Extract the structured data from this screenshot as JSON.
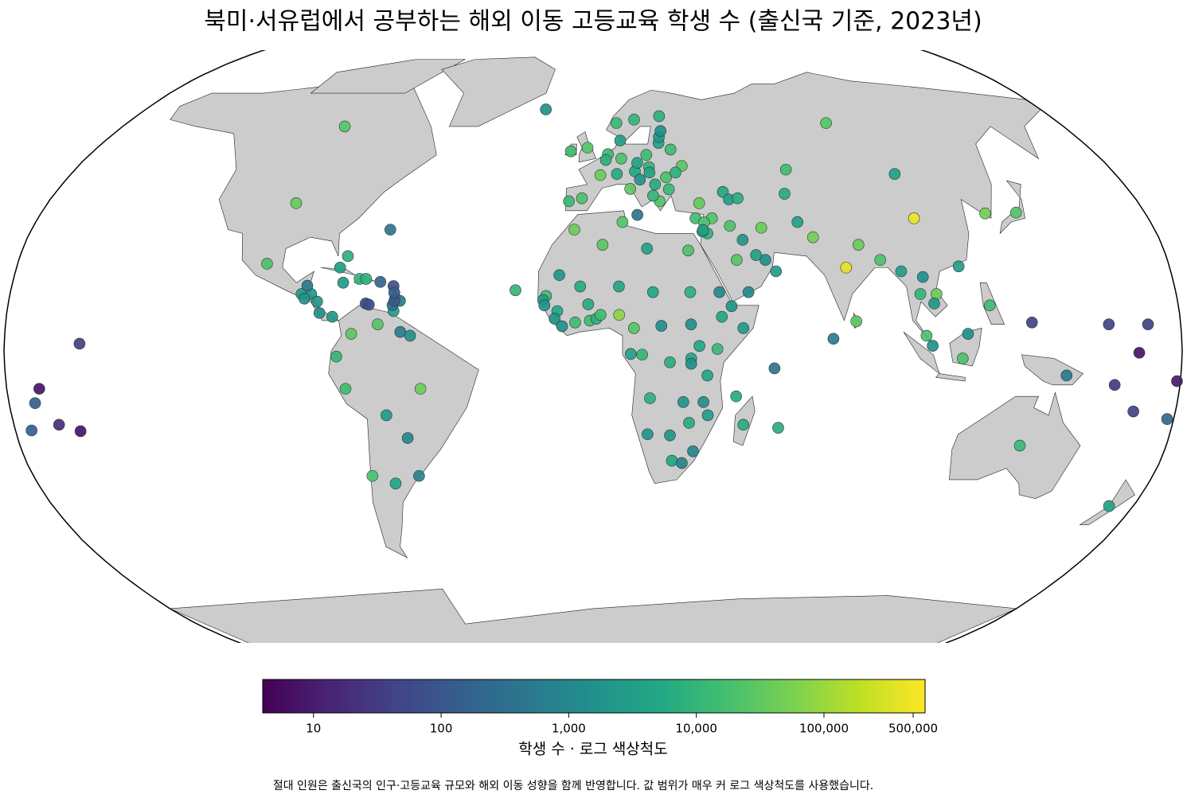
{
  "chart_data": {
    "type": "map",
    "title": "북미·서유럽에서 공부하는 해외 이동 고등교육 학생 수 (출신국 기준, 2023년)",
    "colorbar_label": "학생 수 · 로그 색상척도",
    "note": "절대 인원은 출신국의 인구·고등교육 규모와 해외 이동 성향을 함께 반영합니다. 값 범위가 매우 커 로그 색상척도를 사용했습니다.",
    "log_scale": true,
    "colormap": "viridis",
    "clim": [
      4,
      620000
    ],
    "cbar_ticks": [
      10,
      100,
      {
        "value": 1000,
        "label": "1,000"
      },
      {
        "value": 10000,
        "label": "10,000"
      },
      {
        "value": 100000,
        "label": "100,000"
      },
      {
        "value": 500000,
        "label": "500,000"
      }
    ],
    "points": [
      {
        "lon": -98,
        "lat": 39,
        "value": 35000
      },
      {
        "lon": -95,
        "lat": 60,
        "value": 25000
      },
      {
        "lon": -102,
        "lat": 23,
        "value": 20000
      },
      {
        "lon": -90,
        "lat": 15,
        "value": 3000
      },
      {
        "lon": -87,
        "lat": 15,
        "value": 2500
      },
      {
        "lon": -89,
        "lat": 13.8,
        "value": 1500
      },
      {
        "lon": -85,
        "lat": 13,
        "value": 2000
      },
      {
        "lon": -84,
        "lat": 10,
        "value": 1500
      },
      {
        "lon": -80,
        "lat": 9,
        "value": 2500
      },
      {
        "lon": -77,
        "lat": 25,
        "value": 8000
      },
      {
        "lon": -65,
        "lat": 32,
        "value": 400
      },
      {
        "lon": -79,
        "lat": 22,
        "value": 3000
      },
      {
        "lon": -72.5,
        "lat": 19,
        "value": 10000
      },
      {
        "lon": -70.5,
        "lat": 19,
        "value": 8000
      },
      {
        "lon": -77.5,
        "lat": 18,
        "value": 2500
      },
      {
        "lon": -66,
        "lat": 18.2,
        "value": 200
      },
      {
        "lon": -61.8,
        "lat": 17.1,
        "value": 80
      },
      {
        "lon": -61,
        "lat": 13.9,
        "value": 150
      },
      {
        "lon": -59.5,
        "lat": 13.2,
        "value": 600
      },
      {
        "lon": -61.3,
        "lat": 10.5,
        "value": 3000
      },
      {
        "lon": -61.7,
        "lat": 12.1,
        "value": 300
      },
      {
        "lon": -61.2,
        "lat": 13.2,
        "value": 100
      },
      {
        "lon": -61.4,
        "lat": 15.4,
        "value": 150
      },
      {
        "lon": -70,
        "lat": 12.5,
        "value": 60
      },
      {
        "lon": -69,
        "lat": 12.2,
        "value": 70
      },
      {
        "lon": -88.5,
        "lat": 17.2,
        "value": 500
      },
      {
        "lon": -74,
        "lat": 4.5,
        "value": 30000
      },
      {
        "lon": -66,
        "lat": 7,
        "value": 25000
      },
      {
        "lon": -78.5,
        "lat": -1.5,
        "value": 10000
      },
      {
        "lon": -76,
        "lat": -10,
        "value": 15000
      },
      {
        "lon": -53,
        "lat": -10,
        "value": 40000
      },
      {
        "lon": -64,
        "lat": -17,
        "value": 2500
      },
      {
        "lon": -58,
        "lat": -23,
        "value": 1000
      },
      {
        "lon": -71,
        "lat": -33,
        "value": 20000
      },
      {
        "lon": -64,
        "lat": -35,
        "value": 5000
      },
      {
        "lon": -56,
        "lat": -33,
        "value": 800
      },
      {
        "lon": -59,
        "lat": 5,
        "value": 600
      },
      {
        "lon": -56,
        "lat": 4,
        "value": 1500
      },
      {
        "lon": -19,
        "lat": 65,
        "value": 1500
      },
      {
        "lon": -2,
        "lat": 54,
        "value": 25000
      },
      {
        "lon": -8,
        "lat": 53,
        "value": 15000
      },
      {
        "lon": 9,
        "lat": 61,
        "value": 12000
      },
      {
        "lon": 16,
        "lat": 62,
        "value": 10000
      },
      {
        "lon": 26,
        "lat": 63,
        "value": 8000
      },
      {
        "lon": 10,
        "lat": 56,
        "value": 4000
      },
      {
        "lon": 5.3,
        "lat": 52.2,
        "value": 12000
      },
      {
        "lon": 4.5,
        "lat": 50.6,
        "value": 8000
      },
      {
        "lon": 10,
        "lat": 51,
        "value": 20000
      },
      {
        "lon": 2.5,
        "lat": 46.5,
        "value": 40000
      },
      {
        "lon": -3.7,
        "lat": 40.3,
        "value": 20000
      },
      {
        "lon": -8,
        "lat": 39.5,
        "value": 12000
      },
      {
        "lon": 12.5,
        "lat": 42.8,
        "value": 30000
      },
      {
        "lon": 8.2,
        "lat": 46.8,
        "value": 6000
      },
      {
        "lon": 14.5,
        "lat": 47.5,
        "value": 5000
      },
      {
        "lon": 19,
        "lat": 52,
        "value": 15000
      },
      {
        "lon": 15.5,
        "lat": 49.8,
        "value": 4000
      },
      {
        "lon": 19.5,
        "lat": 48.7,
        "value": 10000
      },
      {
        "lon": 19.5,
        "lat": 47.2,
        "value": 4000
      },
      {
        "lon": 25,
        "lat": 45.9,
        "value": 20000
      },
      {
        "lon": 25.5,
        "lat": 42.7,
        "value": 12000
      },
      {
        "lon": 22,
        "lat": 39.5,
        "value": 25000
      },
      {
        "lon": 21,
        "lat": 44,
        "value": 6000
      },
      {
        "lon": 16,
        "lat": 45.3,
        "value": 2000
      },
      {
        "lon": 31,
        "lat": 49,
        "value": 30000
      },
      {
        "lon": 28,
        "lat": 53.5,
        "value": 15000
      },
      {
        "lon": 24,
        "lat": 55.3,
        "value": 4000
      },
      {
        "lon": 24.5,
        "lat": 57,
        "value": 2500
      },
      {
        "lon": 25.5,
        "lat": 58.7,
        "value": 1500
      },
      {
        "lon": 28.5,
        "lat": 47.2,
        "value": 8000
      },
      {
        "lon": 20,
        "lat": 41,
        "value": 10000
      },
      {
        "lon": 33.2,
        "lat": 35,
        "value": 15000
      },
      {
        "lon": 14.4,
        "lat": 35.9,
        "value": 400
      },
      {
        "lon": 35,
        "lat": 39,
        "value": 35000
      },
      {
        "lon": 90,
        "lat": 61,
        "value": 25000
      },
      {
        "lon": 67,
        "lat": 48,
        "value": 15000
      },
      {
        "lon": 64,
        "lat": 41.5,
        "value": 6000
      },
      {
        "lon": 43.5,
        "lat": 42,
        "value": 5000
      },
      {
        "lon": 45,
        "lat": 40,
        "value": 3000
      },
      {
        "lon": 48,
        "lat": 40.3,
        "value": 7000
      },
      {
        "lon": 54,
        "lat": 32.5,
        "value": 40000
      },
      {
        "lon": 44,
        "lat": 33,
        "value": 20000
      },
      {
        "lon": 38.5,
        "lat": 35,
        "value": 25000
      },
      {
        "lon": 35.8,
        "lat": 33.9,
        "value": 20000
      },
      {
        "lon": 36.5,
        "lat": 31,
        "value": 8000
      },
      {
        "lon": 35,
        "lat": 31.5,
        "value": 6000
      },
      {
        "lon": 35.2,
        "lat": 31.9,
        "value": 3000
      },
      {
        "lon": 45,
        "lat": 24,
        "value": 25000
      },
      {
        "lon": 54,
        "lat": 24,
        "value": 1500
      },
      {
        "lon": 57,
        "lat": 21,
        "value": 2500
      },
      {
        "lon": 48,
        "lat": 15.5,
        "value": 1000
      },
      {
        "lon": 51.2,
        "lat": 25.3,
        "value": 3000
      },
      {
        "lon": 47.5,
        "lat": 29.3,
        "value": 2000
      },
      {
        "lon": 66,
        "lat": 34,
        "value": 4000
      },
      {
        "lon": 70,
        "lat": 30,
        "value": 50000
      },
      {
        "lon": 79,
        "lat": 22,
        "value": 380000
      },
      {
        "lon": 84,
        "lat": 28,
        "value": 40000
      },
      {
        "lon": 90,
        "lat": 24,
        "value": 20000
      },
      {
        "lon": 80.7,
        "lat": 7.8,
        "value": 30000
      },
      {
        "lon": 73.5,
        "lat": 3.2,
        "value": 600
      },
      {
        "lon": 104,
        "lat": 35,
        "value": 450000
      },
      {
        "lon": 104,
        "lat": 46.8,
        "value": 4000
      },
      {
        "lon": 127.8,
        "lat": 36.3,
        "value": 50000
      },
      {
        "lon": 138,
        "lat": 36.5,
        "value": 25000
      },
      {
        "lon": 106,
        "lat": 15,
        "value": 40000
      },
      {
        "lon": 96,
        "lat": 21,
        "value": 3000
      },
      {
        "lon": 101,
        "lat": 15,
        "value": 10000
      },
      {
        "lon": 102.5,
        "lat": 19.5,
        "value": 1500
      },
      {
        "lon": 105,
        "lat": 12.5,
        "value": 2000
      },
      {
        "lon": 102,
        "lat": 4,
        "value": 20000
      },
      {
        "lon": 113,
        "lat": -2,
        "value": 20000
      },
      {
        "lon": 122,
        "lat": 12,
        "value": 15000
      },
      {
        "lon": 103.8,
        "lat": 1.35,
        "value": 1500
      },
      {
        "lon": 114.2,
        "lat": 22.3,
        "value": 3000
      },
      {
        "lon": 114.7,
        "lat": 4.5,
        "value": 1500
      },
      {
        "lon": -6,
        "lat": 32,
        "value": 40000
      },
      {
        "lon": 3,
        "lat": 28,
        "value": 30000
      },
      {
        "lon": 9.5,
        "lat": 34,
        "value": 25000
      },
      {
        "lon": 17,
        "lat": 27,
        "value": 4000
      },
      {
        "lon": 30,
        "lat": 26.5,
        "value": 20000
      },
      {
        "lon": -10.5,
        "lat": 20,
        "value": 2000
      },
      {
        "lon": -4,
        "lat": 17,
        "value": 6000
      },
      {
        "lon": 8,
        "lat": 17,
        "value": 5000
      },
      {
        "lon": 18.5,
        "lat": 15.5,
        "value": 5000
      },
      {
        "lon": 30,
        "lat": 15.5,
        "value": 8000
      },
      {
        "lon": -14.5,
        "lat": 14.5,
        "value": 15000
      },
      {
        "lon": -15.4,
        "lat": 13.4,
        "value": 2500
      },
      {
        "lon": -15,
        "lat": 12,
        "value": 2000
      },
      {
        "lon": -11,
        "lat": 10.5,
        "value": 5000
      },
      {
        "lon": -11.8,
        "lat": 8.5,
        "value": 2000
      },
      {
        "lon": -9.5,
        "lat": 6.5,
        "value": 1500
      },
      {
        "lon": -5.5,
        "lat": 7.5,
        "value": 15000
      },
      {
        "lon": -1.5,
        "lat": 12.3,
        "value": 6000
      },
      {
        "lon": -1,
        "lat": 8,
        "value": 15000
      },
      {
        "lon": 1,
        "lat": 8.5,
        "value": 8000
      },
      {
        "lon": 2.3,
        "lat": 9.5,
        "value": 15000
      },
      {
        "lon": 8,
        "lat": 9.5,
        "value": 80000
      },
      {
        "lon": 12.5,
        "lat": 6,
        "value": 25000
      },
      {
        "lon": 20.9,
        "lat": 6.6,
        "value": 1500
      },
      {
        "lon": 11.5,
        "lat": -0.8,
        "value": 4000
      },
      {
        "lon": 15,
        "lat": -1,
        "value": 10000
      },
      {
        "lon": 23.5,
        "lat": -3,
        "value": 7000
      },
      {
        "lon": 30,
        "lat": 7,
        "value": 1500
      },
      {
        "lon": 39.5,
        "lat": 9,
        "value": 5000
      },
      {
        "lon": 39,
        "lat": 15.5,
        "value": 1000
      },
      {
        "lon": 42.6,
        "lat": 11.8,
        "value": 2000
      },
      {
        "lon": 46,
        "lat": 6,
        "value": 2500
      },
      {
        "lon": 32.5,
        "lat": 1.3,
        "value": 5000
      },
      {
        "lon": 38,
        "lat": 0.5,
        "value": 12000
      },
      {
        "lon": 30,
        "lat": -2,
        "value": 5000
      },
      {
        "lon": 30,
        "lat": -3.4,
        "value": 1500
      },
      {
        "lon": 35,
        "lat": -6.5,
        "value": 5000
      },
      {
        "lon": 17.5,
        "lat": -12.5,
        "value": 8000
      },
      {
        "lon": 27.8,
        "lat": -13.5,
        "value": 2000
      },
      {
        "lon": 34,
        "lat": -13.5,
        "value": 1500
      },
      {
        "lon": 35.5,
        "lat": -17,
        "value": 3000
      },
      {
        "lon": 29.8,
        "lat": -19,
        "value": 6000
      },
      {
        "lon": 17,
        "lat": -22,
        "value": 2000
      },
      {
        "lon": 24,
        "lat": -22.3,
        "value": 2000
      },
      {
        "lon": 25,
        "lat": -29,
        "value": 5000
      },
      {
        "lon": 28.2,
        "lat": -29.6,
        "value": 800
      },
      {
        "lon": 31.5,
        "lat": -26.5,
        "value": 1000
      },
      {
        "lon": 46.7,
        "lat": -19.5,
        "value": 6000
      },
      {
        "lon": 57.6,
        "lat": -20.3,
        "value": 7000
      },
      {
        "lon": 55.5,
        "lat": -4.6,
        "value": 400
      },
      {
        "lon": 44,
        "lat": -12,
        "value": 6000
      },
      {
        "lon": -24,
        "lat": 16,
        "value": 10000
      },
      {
        "lon": 134,
        "lat": -25,
        "value": 12000
      },
      {
        "lon": 172,
        "lat": -41,
        "value": 4000
      },
      {
        "lon": 145,
        "lat": -6.5,
        "value": 500
      },
      {
        "lon": 134.5,
        "lat": 7.5,
        "value": 40
      },
      {
        "lon": 158,
        "lat": 7,
        "value": 40
      },
      {
        "lon": 170,
        "lat": 7,
        "value": 40
      },
      {
        "lon": 166.9,
        "lat": -0.5,
        "value": 8
      },
      {
        "lon": 179,
        "lat": -8,
        "value": 10
      },
      {
        "lon": 160,
        "lat": -9,
        "value": 30
      },
      {
        "lon": 167,
        "lat": -16,
        "value": 40
      },
      {
        "lon": 178,
        "lat": -18,
        "value": 200
      },
      {
        "lon": -157,
        "lat": 1.9,
        "value": 40
      },
      {
        "lon": -170,
        "lat": -10,
        "value": 8
      },
      {
        "lon": -172,
        "lat": -13.8,
        "value": 150
      },
      {
        "lon": -166,
        "lat": -19.5,
        "value": 20
      },
      {
        "lon": -175,
        "lat": -21,
        "value": 150
      },
      {
        "lon": -159.8,
        "lat": -21.2,
        "value": 8
      }
    ]
  }
}
